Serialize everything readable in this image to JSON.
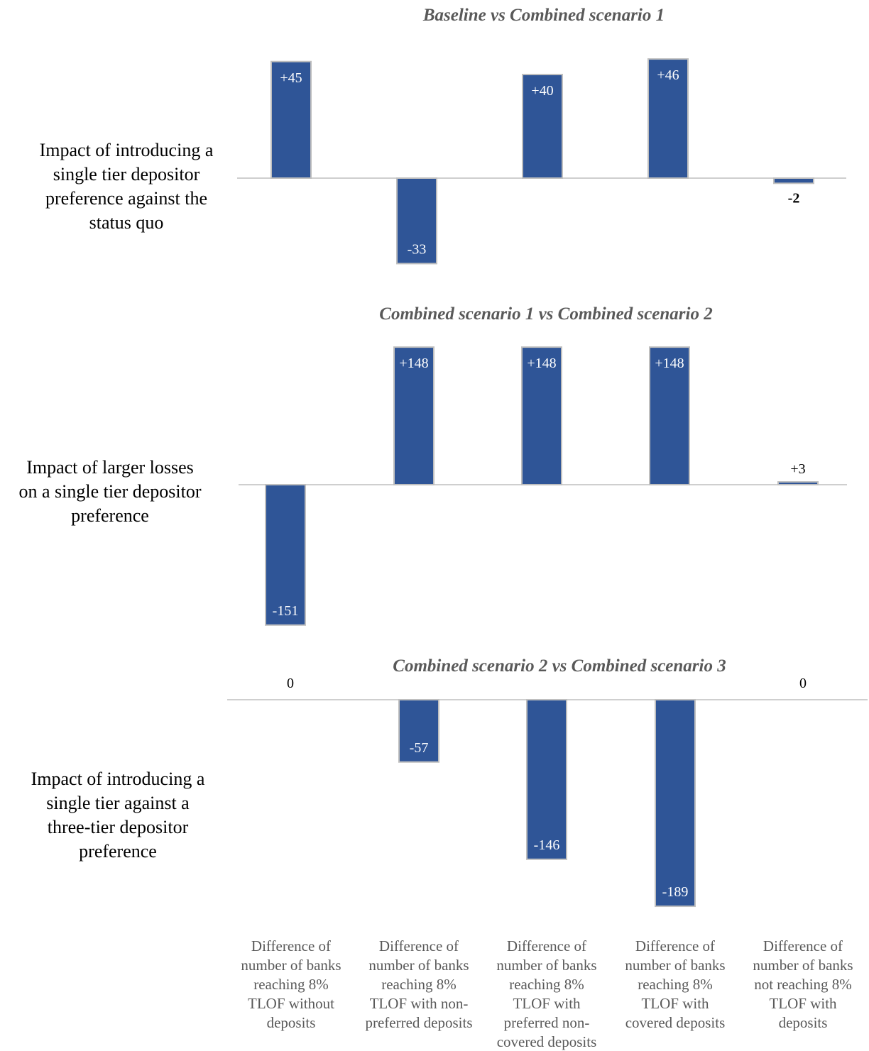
{
  "chart_data": {
    "type": "bar",
    "categories": [
      [
        "Difference of",
        "number of banks",
        "reaching 8%",
        "TLOF without",
        "deposits"
      ],
      [
        "Difference of",
        "number of banks",
        "reaching 8%",
        "TLOF with non-",
        "preferred deposits"
      ],
      [
        "Difference of",
        "number of banks",
        "reaching 8%",
        "TLOF with",
        "preferred non-",
        "covered deposits"
      ],
      [
        "Difference of",
        "number of banks",
        "reaching 8%",
        "TLOF with",
        "covered deposits"
      ],
      [
        "Difference of",
        "number of banks",
        "not reaching 8%",
        "TLOF with",
        "deposits"
      ]
    ],
    "bar_color": "#2F5597",
    "bar_border_color": "#BFBFBF",
    "panels": [
      {
        "title": "Baseline vs Combined scenario 1",
        "side_label": [
          "Impact of introducing a",
          "single tier depositor",
          "preference against the",
          "status quo"
        ],
        "values": [
          45,
          -33,
          40,
          46,
          -2
        ],
        "labels": [
          "+45",
          "-33",
          "+40",
          "+46",
          "-2"
        ]
      },
      {
        "title": "Combined scenario 1 vs Combined scenario 2",
        "side_label": [
          "Impact of larger losses",
          "on a single tier depositor",
          "preference"
        ],
        "values": [
          -151,
          148,
          148,
          148,
          3
        ],
        "labels": [
          "-151",
          "+148",
          "+148",
          "+148",
          "+3"
        ]
      },
      {
        "title": "Combined scenario 2 vs Combined scenario 3",
        "side_label": [
          "Impact of introducing a",
          "single tier against a",
          "three-tier depositor",
          "preference"
        ],
        "values": [
          0,
          -57,
          -146,
          -189,
          0
        ],
        "labels": [
          "0",
          "-57",
          "-146",
          "-189",
          "0"
        ]
      }
    ]
  }
}
